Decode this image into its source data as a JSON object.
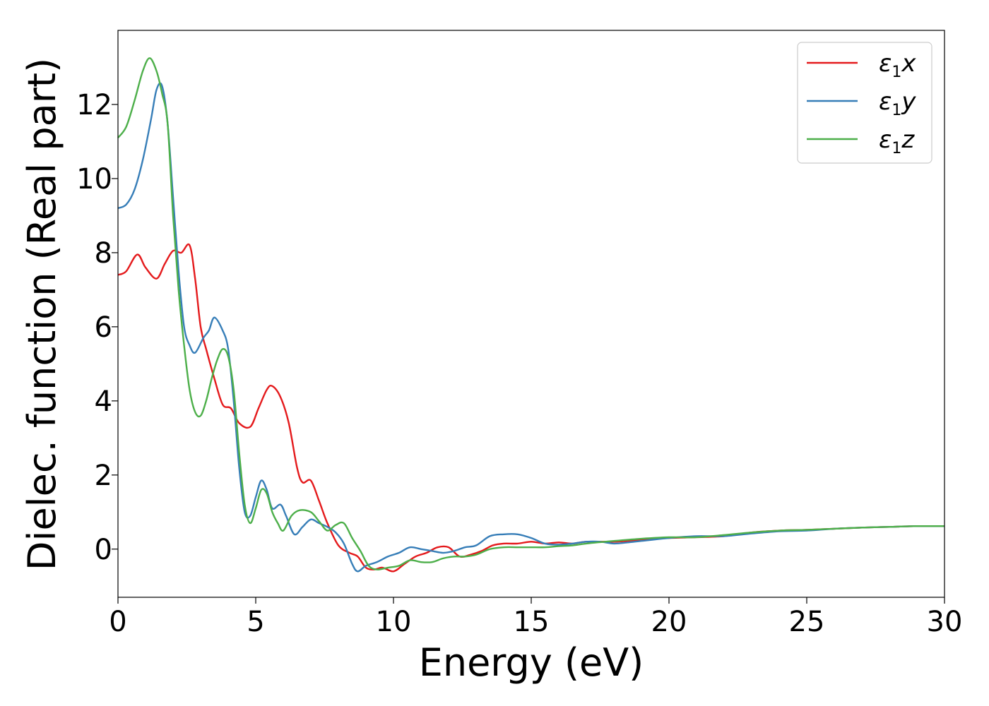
{
  "chart_data": {
    "type": "line",
    "xlabel": "Energy (eV)",
    "ylabel": "Dielec. function (Real part)",
    "xlim": [
      0,
      30
    ],
    "ylim": [
      -1.3,
      14
    ],
    "xticks": [
      0,
      5,
      10,
      15,
      20,
      25,
      30
    ],
    "yticks": [
      0,
      2,
      4,
      6,
      8,
      10,
      12
    ],
    "grid": false,
    "legend_position": "top-right",
    "series": [
      {
        "name": "ε1x",
        "legend": {
          "symbol": "ε",
          "sub": "1",
          "axis": "x"
        },
        "color": "#e41a1c",
        "points": [
          [
            0,
            7.4
          ],
          [
            0.3,
            7.5
          ],
          [
            0.7,
            7.95
          ],
          [
            1.0,
            7.6
          ],
          [
            1.4,
            7.3
          ],
          [
            1.7,
            7.7
          ],
          [
            2.0,
            8.05
          ],
          [
            2.3,
            8.0
          ],
          [
            2.6,
            8.2
          ],
          [
            2.8,
            7.3
          ],
          [
            3.0,
            6.0
          ],
          [
            3.2,
            5.4
          ],
          [
            3.5,
            4.6
          ],
          [
            3.8,
            3.9
          ],
          [
            4.1,
            3.8
          ],
          [
            4.4,
            3.4
          ],
          [
            4.8,
            3.3
          ],
          [
            5.1,
            3.8
          ],
          [
            5.4,
            4.3
          ],
          [
            5.6,
            4.4
          ],
          [
            5.9,
            4.1
          ],
          [
            6.2,
            3.4
          ],
          [
            6.5,
            2.2
          ],
          [
            6.7,
            1.8
          ],
          [
            7.0,
            1.85
          ],
          [
            7.3,
            1.3
          ],
          [
            7.6,
            0.7
          ],
          [
            8.0,
            0.1
          ],
          [
            8.4,
            -0.1
          ],
          [
            8.7,
            -0.2
          ],
          [
            9.0,
            -0.5
          ],
          [
            9.3,
            -0.55
          ],
          [
            9.6,
            -0.5
          ],
          [
            10.0,
            -0.6
          ],
          [
            10.4,
            -0.4
          ],
          [
            10.8,
            -0.2
          ],
          [
            11.2,
            -0.1
          ],
          [
            11.6,
            0.05
          ],
          [
            12.0,
            0.05
          ],
          [
            12.4,
            -0.2
          ],
          [
            12.8,
            -0.15
          ],
          [
            13.2,
            -0.05
          ],
          [
            13.6,
            0.1
          ],
          [
            14.0,
            0.15
          ],
          [
            14.5,
            0.15
          ],
          [
            15.0,
            0.2
          ],
          [
            15.5,
            0.15
          ],
          [
            16.0,
            0.18
          ],
          [
            16.5,
            0.15
          ],
          [
            17.0,
            0.2
          ],
          [
            18.0,
            0.2
          ],
          [
            19.0,
            0.25
          ],
          [
            20.0,
            0.3
          ],
          [
            21.0,
            0.32
          ],
          [
            22.0,
            0.35
          ],
          [
            23.0,
            0.45
          ],
          [
            24.0,
            0.5
          ],
          [
            25.0,
            0.52
          ],
          [
            26.0,
            0.55
          ],
          [
            27.0,
            0.58
          ],
          [
            28.0,
            0.6
          ],
          [
            29.0,
            0.62
          ],
          [
            30.0,
            0.62
          ]
        ]
      },
      {
        "name": "ε1y",
        "legend": {
          "symbol": "ε",
          "sub": "1",
          "axis": "y"
        },
        "color": "#377eb8",
        "points": [
          [
            0,
            9.2
          ],
          [
            0.3,
            9.3
          ],
          [
            0.6,
            9.7
          ],
          [
            0.9,
            10.5
          ],
          [
            1.2,
            11.6
          ],
          [
            1.4,
            12.4
          ],
          [
            1.6,
            12.5
          ],
          [
            1.8,
            11.5
          ],
          [
            2.0,
            9.5
          ],
          [
            2.2,
            7.5
          ],
          [
            2.4,
            6.0
          ],
          [
            2.6,
            5.5
          ],
          [
            2.8,
            5.3
          ],
          [
            3.1,
            5.7
          ],
          [
            3.3,
            5.9
          ],
          [
            3.5,
            6.25
          ],
          [
            3.8,
            5.9
          ],
          [
            4.0,
            5.4
          ],
          [
            4.2,
            4.0
          ],
          [
            4.4,
            2.2
          ],
          [
            4.6,
            1.0
          ],
          [
            4.8,
            0.9
          ],
          [
            5.0,
            1.4
          ],
          [
            5.2,
            1.85
          ],
          [
            5.4,
            1.6
          ],
          [
            5.6,
            1.1
          ],
          [
            5.9,
            1.2
          ],
          [
            6.1,
            0.9
          ],
          [
            6.4,
            0.4
          ],
          [
            6.7,
            0.6
          ],
          [
            7.0,
            0.8
          ],
          [
            7.3,
            0.7
          ],
          [
            7.6,
            0.6
          ],
          [
            7.9,
            0.45
          ],
          [
            8.2,
            0.15
          ],
          [
            8.5,
            -0.4
          ],
          [
            8.7,
            -0.6
          ],
          [
            9.0,
            -0.45
          ],
          [
            9.4,
            -0.35
          ],
          [
            9.8,
            -0.2
          ],
          [
            10.2,
            -0.1
          ],
          [
            10.6,
            0.05
          ],
          [
            11.0,
            0.0
          ],
          [
            11.4,
            -0.05
          ],
          [
            11.8,
            -0.1
          ],
          [
            12.2,
            -0.05
          ],
          [
            12.6,
            0.05
          ],
          [
            13.0,
            0.1
          ],
          [
            13.5,
            0.35
          ],
          [
            14.0,
            0.4
          ],
          [
            14.5,
            0.4
          ],
          [
            15.0,
            0.3
          ],
          [
            15.5,
            0.15
          ],
          [
            16.0,
            0.12
          ],
          [
            16.5,
            0.15
          ],
          [
            17.0,
            0.2
          ],
          [
            17.5,
            0.2
          ],
          [
            18.0,
            0.15
          ],
          [
            18.5,
            0.18
          ],
          [
            19.0,
            0.22
          ],
          [
            20.0,
            0.3
          ],
          [
            21.0,
            0.35
          ],
          [
            22.0,
            0.35
          ],
          [
            23.0,
            0.42
          ],
          [
            24.0,
            0.48
          ],
          [
            25.0,
            0.5
          ],
          [
            26.0,
            0.55
          ],
          [
            27.0,
            0.58
          ],
          [
            28.0,
            0.6
          ],
          [
            29.0,
            0.62
          ],
          [
            30.0,
            0.62
          ]
        ]
      },
      {
        "name": "ε1z",
        "legend": {
          "symbol": "ε",
          "sub": "1",
          "axis": "z"
        },
        "color": "#4daf4a",
        "points": [
          [
            0,
            11.1
          ],
          [
            0.3,
            11.4
          ],
          [
            0.6,
            12.1
          ],
          [
            0.9,
            12.9
          ],
          [
            1.15,
            13.25
          ],
          [
            1.4,
            12.9
          ],
          [
            1.6,
            12.3
          ],
          [
            1.8,
            11.5
          ],
          [
            2.0,
            9.0
          ],
          [
            2.2,
            7.0
          ],
          [
            2.4,
            5.5
          ],
          [
            2.6,
            4.3
          ],
          [
            2.8,
            3.7
          ],
          [
            3.0,
            3.6
          ],
          [
            3.2,
            4.0
          ],
          [
            3.4,
            4.6
          ],
          [
            3.6,
            5.1
          ],
          [
            3.8,
            5.4
          ],
          [
            4.0,
            5.2
          ],
          [
            4.2,
            4.3
          ],
          [
            4.4,
            2.6
          ],
          [
            4.6,
            1.2
          ],
          [
            4.8,
            0.7
          ],
          [
            5.0,
            1.1
          ],
          [
            5.2,
            1.6
          ],
          [
            5.4,
            1.5
          ],
          [
            5.6,
            1.0
          ],
          [
            5.8,
            0.7
          ],
          [
            6.0,
            0.5
          ],
          [
            6.3,
            0.9
          ],
          [
            6.6,
            1.05
          ],
          [
            7.0,
            1.0
          ],
          [
            7.3,
            0.75
          ],
          [
            7.6,
            0.5
          ],
          [
            7.9,
            0.65
          ],
          [
            8.2,
            0.7
          ],
          [
            8.5,
            0.3
          ],
          [
            8.8,
            -0.05
          ],
          [
            9.1,
            -0.45
          ],
          [
            9.4,
            -0.55
          ],
          [
            9.8,
            -0.5
          ],
          [
            10.2,
            -0.45
          ],
          [
            10.6,
            -0.3
          ],
          [
            11.0,
            -0.35
          ],
          [
            11.4,
            -0.35
          ],
          [
            11.8,
            -0.25
          ],
          [
            12.2,
            -0.2
          ],
          [
            12.6,
            -0.2
          ],
          [
            13.0,
            -0.15
          ],
          [
            13.5,
            0.0
          ],
          [
            14.0,
            0.05
          ],
          [
            14.5,
            0.05
          ],
          [
            15.0,
            0.05
          ],
          [
            15.5,
            0.05
          ],
          [
            16.0,
            0.08
          ],
          [
            16.5,
            0.1
          ],
          [
            17.0,
            0.15
          ],
          [
            18.0,
            0.22
          ],
          [
            19.0,
            0.28
          ],
          [
            20.0,
            0.32
          ],
          [
            21.0,
            0.32
          ],
          [
            22.0,
            0.38
          ],
          [
            23.0,
            0.45
          ],
          [
            24.0,
            0.5
          ],
          [
            25.0,
            0.52
          ],
          [
            26.0,
            0.55
          ],
          [
            27.0,
            0.58
          ],
          [
            28.0,
            0.6
          ],
          [
            29.0,
            0.62
          ],
          [
            30.0,
            0.62
          ]
        ]
      }
    ]
  }
}
